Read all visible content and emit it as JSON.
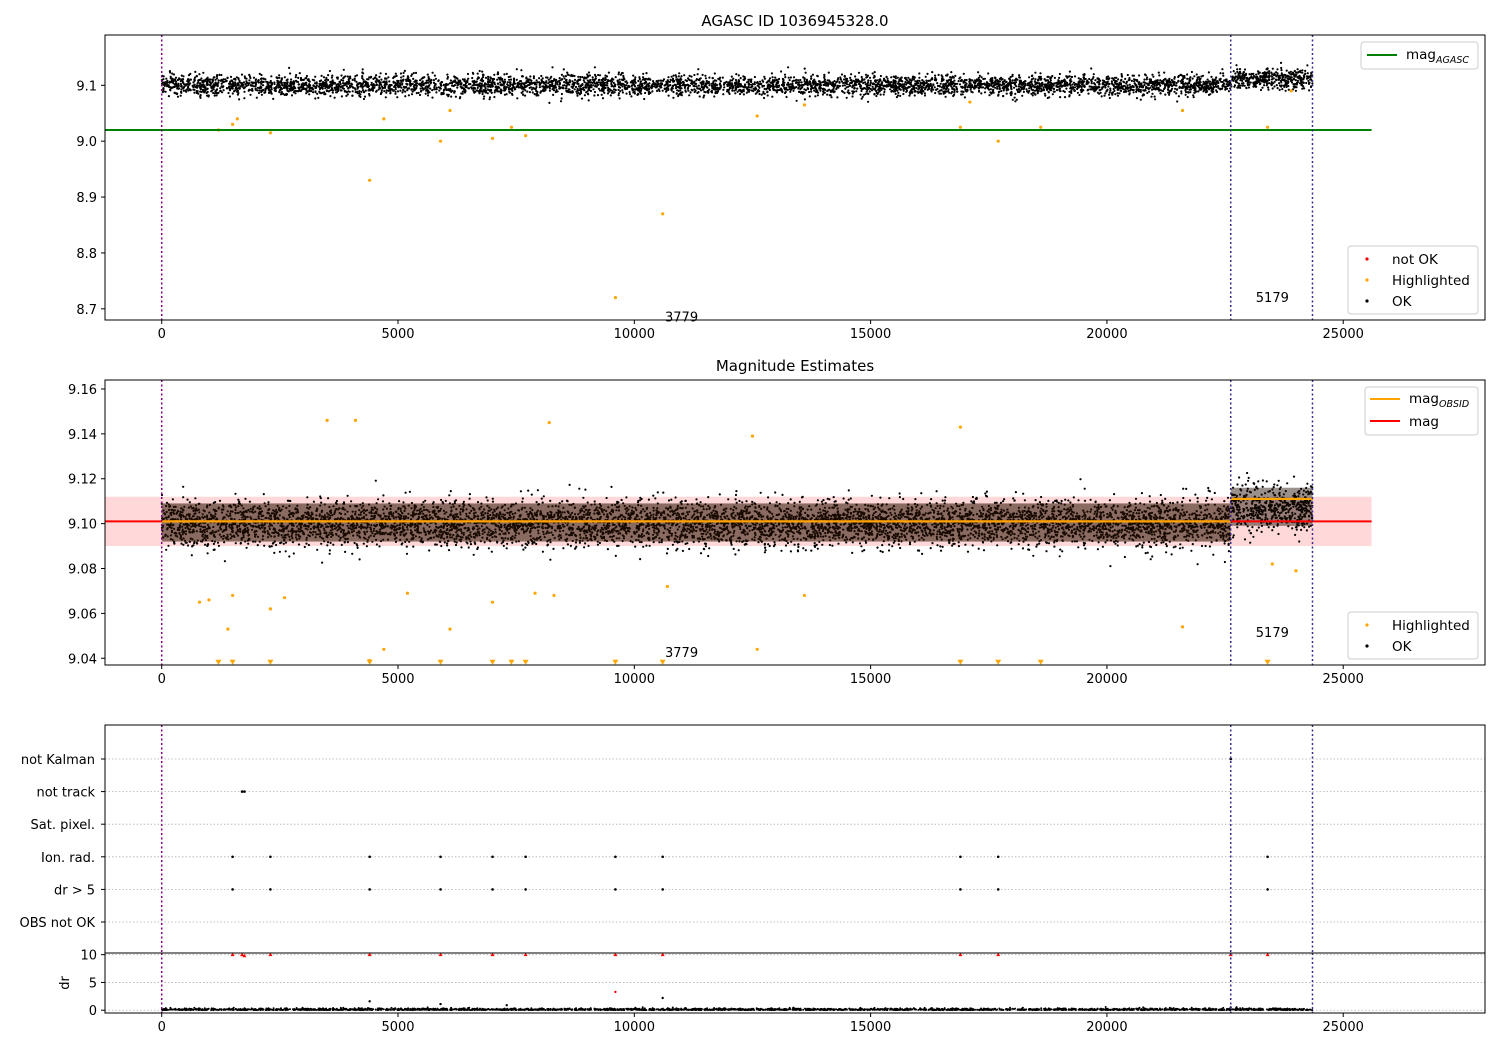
{
  "figure": {
    "observation_start_times": [
      0,
      22620,
      24350
    ],
    "obsid_annotations": [
      {
        "text": "3779",
        "x": 11000,
        "y": 8.695
      },
      {
        "text": "5179",
        "x": 23500,
        "y": 8.73
      }
    ]
  },
  "chart_data": [
    {
      "type": "scatter",
      "title": "AGASC ID 1036945328.0",
      "xlabel": "",
      "ylabel": "",
      "xlim": [
        -1200,
        28000
      ],
      "ylim": [
        8.68,
        9.19
      ],
      "xticks": [
        "0",
        "5000",
        "10000",
        "15000",
        "20000",
        "25000"
      ],
      "yticks": [
        "8.7",
        "8.8",
        "8.9",
        "9.0",
        "9.1"
      ],
      "reference_lines": [
        {
          "name": "mag$_{AGASC}$",
          "label_base": "mag",
          "label_sub": "AGASC",
          "value": 9.02,
          "x_range": [
            -1200,
            25600
          ],
          "color": "#008000"
        }
      ],
      "ok_band": {
        "x_range": [
          0,
          24350
        ],
        "center": 9.1,
        "spread": 0.022,
        "color": "#000000",
        "segment_means": [
          9.1,
          9.111
        ]
      },
      "series": [
        {
          "name": "not OK",
          "color": "#ff0000",
          "points": []
        },
        {
          "name": "Highlighted",
          "color": "#ffa500",
          "points": [
            [
              1200,
              9.02
            ],
            [
              1500,
              9.03
            ],
            [
              1600,
              9.04
            ],
            [
              2300,
              9.015
            ],
            [
              4400,
              8.93
            ],
            [
              4700,
              9.04
            ],
            [
              5900,
              9.0
            ],
            [
              6100,
              9.055
            ],
            [
              7000,
              9.005
            ],
            [
              7400,
              9.025
            ],
            [
              7700,
              9.01
            ],
            [
              9600,
              8.72
            ],
            [
              10600,
              8.87
            ],
            [
              12600,
              9.045
            ],
            [
              13600,
              9.065
            ],
            [
              16900,
              9.025
            ],
            [
              17100,
              9.07
            ],
            [
              17700,
              9.0
            ],
            [
              18600,
              9.025
            ],
            [
              21600,
              9.055
            ],
            [
              23400,
              9.025
            ],
            [
              23900,
              9.09
            ]
          ]
        },
        {
          "name": "OK",
          "color": "#000000",
          "points": []
        }
      ],
      "legends": [
        {
          "position": "upper-right",
          "entries": [
            {
              "label_base": "mag",
              "label_sub": "AGASC",
              "style": "line",
              "color": "#008000"
            }
          ]
        },
        {
          "position": "lower-right",
          "entries": [
            {
              "label": "not OK",
              "style": "dot",
              "color": "#ff0000"
            },
            {
              "label": "Highlighted",
              "style": "dot",
              "color": "#ffa500"
            },
            {
              "label": "OK",
              "style": "dot",
              "color": "#000000"
            }
          ]
        }
      ]
    },
    {
      "type": "scatter",
      "title": "Magnitude Estimates",
      "xlabel": "",
      "ylabel": "",
      "xlim": [
        -1200,
        28000
      ],
      "ylim": [
        9.037,
        9.164
      ],
      "xticks": [
        "0",
        "5000",
        "10000",
        "15000",
        "20000",
        "25000"
      ],
      "yticks": [
        "9.04",
        "9.06",
        "9.08",
        "9.10",
        "9.12",
        "9.14",
        "9.16"
      ],
      "error_band": {
        "x_range": [
          -1200,
          25600
        ],
        "y_range": [
          9.09,
          9.112
        ],
        "color": "#ffcccc"
      },
      "reference_lines": [
        {
          "name": "mag",
          "value": 9.101,
          "x_range": [
            -1200,
            25600
          ],
          "color": "#ff0000"
        },
        {
          "name": "mag$_{OBSID}$",
          "segments": [
            {
              "x_range": [
                0,
                22620
              ],
              "value": 9.101
            },
            {
              "x_range": [
                22620,
                24350
              ],
              "value": 9.111
            }
          ],
          "color": "#ffa500"
        }
      ],
      "ok_band": {
        "x_range": [
          0,
          24350
        ],
        "center": 9.1,
        "spread": 0.012,
        "color": "#000000",
        "segment_means": [
          9.1,
          9.107
        ]
      },
      "series": [
        {
          "name": "Highlighted",
          "color": "#ffa500",
          "points": [
            [
              800,
              9.065
            ],
            [
              1000,
              9.066
            ],
            [
              1400,
              9.053
            ],
            [
              1500,
              9.068
            ],
            [
              2300,
              9.062
            ],
            [
              2600,
              9.067
            ],
            [
              4400,
              9.039
            ],
            [
              4700,
              9.044
            ],
            [
              5200,
              9.069
            ],
            [
              6100,
              9.053
            ],
            [
              7000,
              9.065
            ],
            [
              7900,
              9.069
            ],
            [
              8300,
              9.068
            ],
            [
              10700,
              9.072
            ],
            [
              12600,
              9.044
            ],
            [
              13600,
              9.068
            ],
            [
              21600,
              9.054
            ],
            [
              23500,
              9.082
            ],
            [
              24000,
              9.079
            ],
            [
              3500,
              9.146
            ],
            [
              4100,
              9.146
            ],
            [
              8200,
              9.145
            ],
            [
              12500,
              9.139
            ],
            [
              16900,
              9.143
            ]
          ]
        },
        {
          "name": "Highlighted (off-scale, below axis)",
          "color": "#ffa500",
          "points": [
            [
              1200,
              9.038
            ],
            [
              1500,
              9.038
            ],
            [
              2300,
              9.038
            ],
            [
              4400,
              9.038
            ],
            [
              5900,
              9.038
            ],
            [
              7000,
              9.038
            ],
            [
              7400,
              9.038
            ],
            [
              7700,
              9.038
            ],
            [
              9600,
              9.038
            ],
            [
              10600,
              9.038
            ],
            [
              16900,
              9.038
            ],
            [
              17700,
              9.038
            ],
            [
              18600,
              9.038
            ],
            [
              23400,
              9.038
            ]
          ]
        },
        {
          "name": "OK",
          "color": "#000000",
          "points": []
        }
      ],
      "legends": [
        {
          "position": "upper-right",
          "entries": [
            {
              "label_base": "mag",
              "label_sub": "OBSID",
              "style": "line",
              "color": "#ffa500"
            },
            {
              "label": "mag",
              "style": "line",
              "color": "#ff0000"
            }
          ]
        },
        {
          "position": "lower-right",
          "entries": [
            {
              "label": "Highlighted",
              "style": "dot",
              "color": "#ffa500"
            },
            {
              "label": "OK",
              "style": "dot",
              "color": "#000000"
            }
          ]
        }
      ]
    },
    {
      "type": "scatter",
      "title": "",
      "xlabel": "",
      "ylabel": "",
      "xlim": [
        -1200,
        28000
      ],
      "categories": [
        "not Kalman",
        "not track",
        "Sat. pixel.",
        "Ion. rad.",
        "dr > 5",
        "OBS not OK"
      ],
      "flag_points": {
        "not Kalman": [
          22620
        ],
        "not track": [
          1700,
          1750
        ],
        "Sat. pixel.": [],
        "Ion. rad.": [
          1500,
          2300,
          4400,
          5900,
          7000,
          7700,
          9600,
          10600,
          16900,
          17700,
          23400
        ],
        "dr > 5": [
          1500,
          2300,
          4400,
          5900,
          7000,
          7700,
          9600,
          10600,
          16900,
          17700,
          23400
        ],
        "OBS not OK": []
      }
    },
    {
      "type": "scatter",
      "title": "",
      "xlabel": "",
      "ylabel": "dr",
      "xlim": [
        -1200,
        28000
      ],
      "ylim": [
        -0.5,
        10.3
      ],
      "xticks": [
        "0",
        "5000",
        "10000",
        "15000",
        "20000",
        "25000"
      ],
      "yticks": [
        "0",
        "5",
        "10"
      ],
      "ok_band": {
        "x_range": [
          0,
          24350
        ],
        "center": 0.15,
        "spread": 0.15,
        "color": "#000000"
      },
      "series": [
        {
          "name": "dr",
          "color": "#000000",
          "points": [
            [
              4400,
              1.6
            ],
            [
              5900,
              1.1
            ],
            [
              7300,
              0.9
            ],
            [
              10600,
              2.2
            ],
            [
              22620,
              0.5
            ]
          ]
        },
        {
          "name": "dr (clipped at 10)",
          "color": "#ff0000",
          "points": [
            [
              1500,
              10
            ],
            [
              1700,
              10
            ],
            [
              1750,
              9.8
            ],
            [
              2300,
              10
            ],
            [
              4400,
              10
            ],
            [
              5900,
              10
            ],
            [
              7000,
              10
            ],
            [
              7700,
              10
            ],
            [
              9600,
              10
            ],
            [
              10600,
              10
            ],
            [
              16900,
              10
            ],
            [
              17700,
              10
            ],
            [
              22620,
              10
            ],
            [
              23400,
              10
            ]
          ]
        },
        {
          "name": "dr (red, unclipped)",
          "color": "#ff0000",
          "points": [
            [
              9600,
              3.3
            ]
          ]
        }
      ]
    }
  ]
}
